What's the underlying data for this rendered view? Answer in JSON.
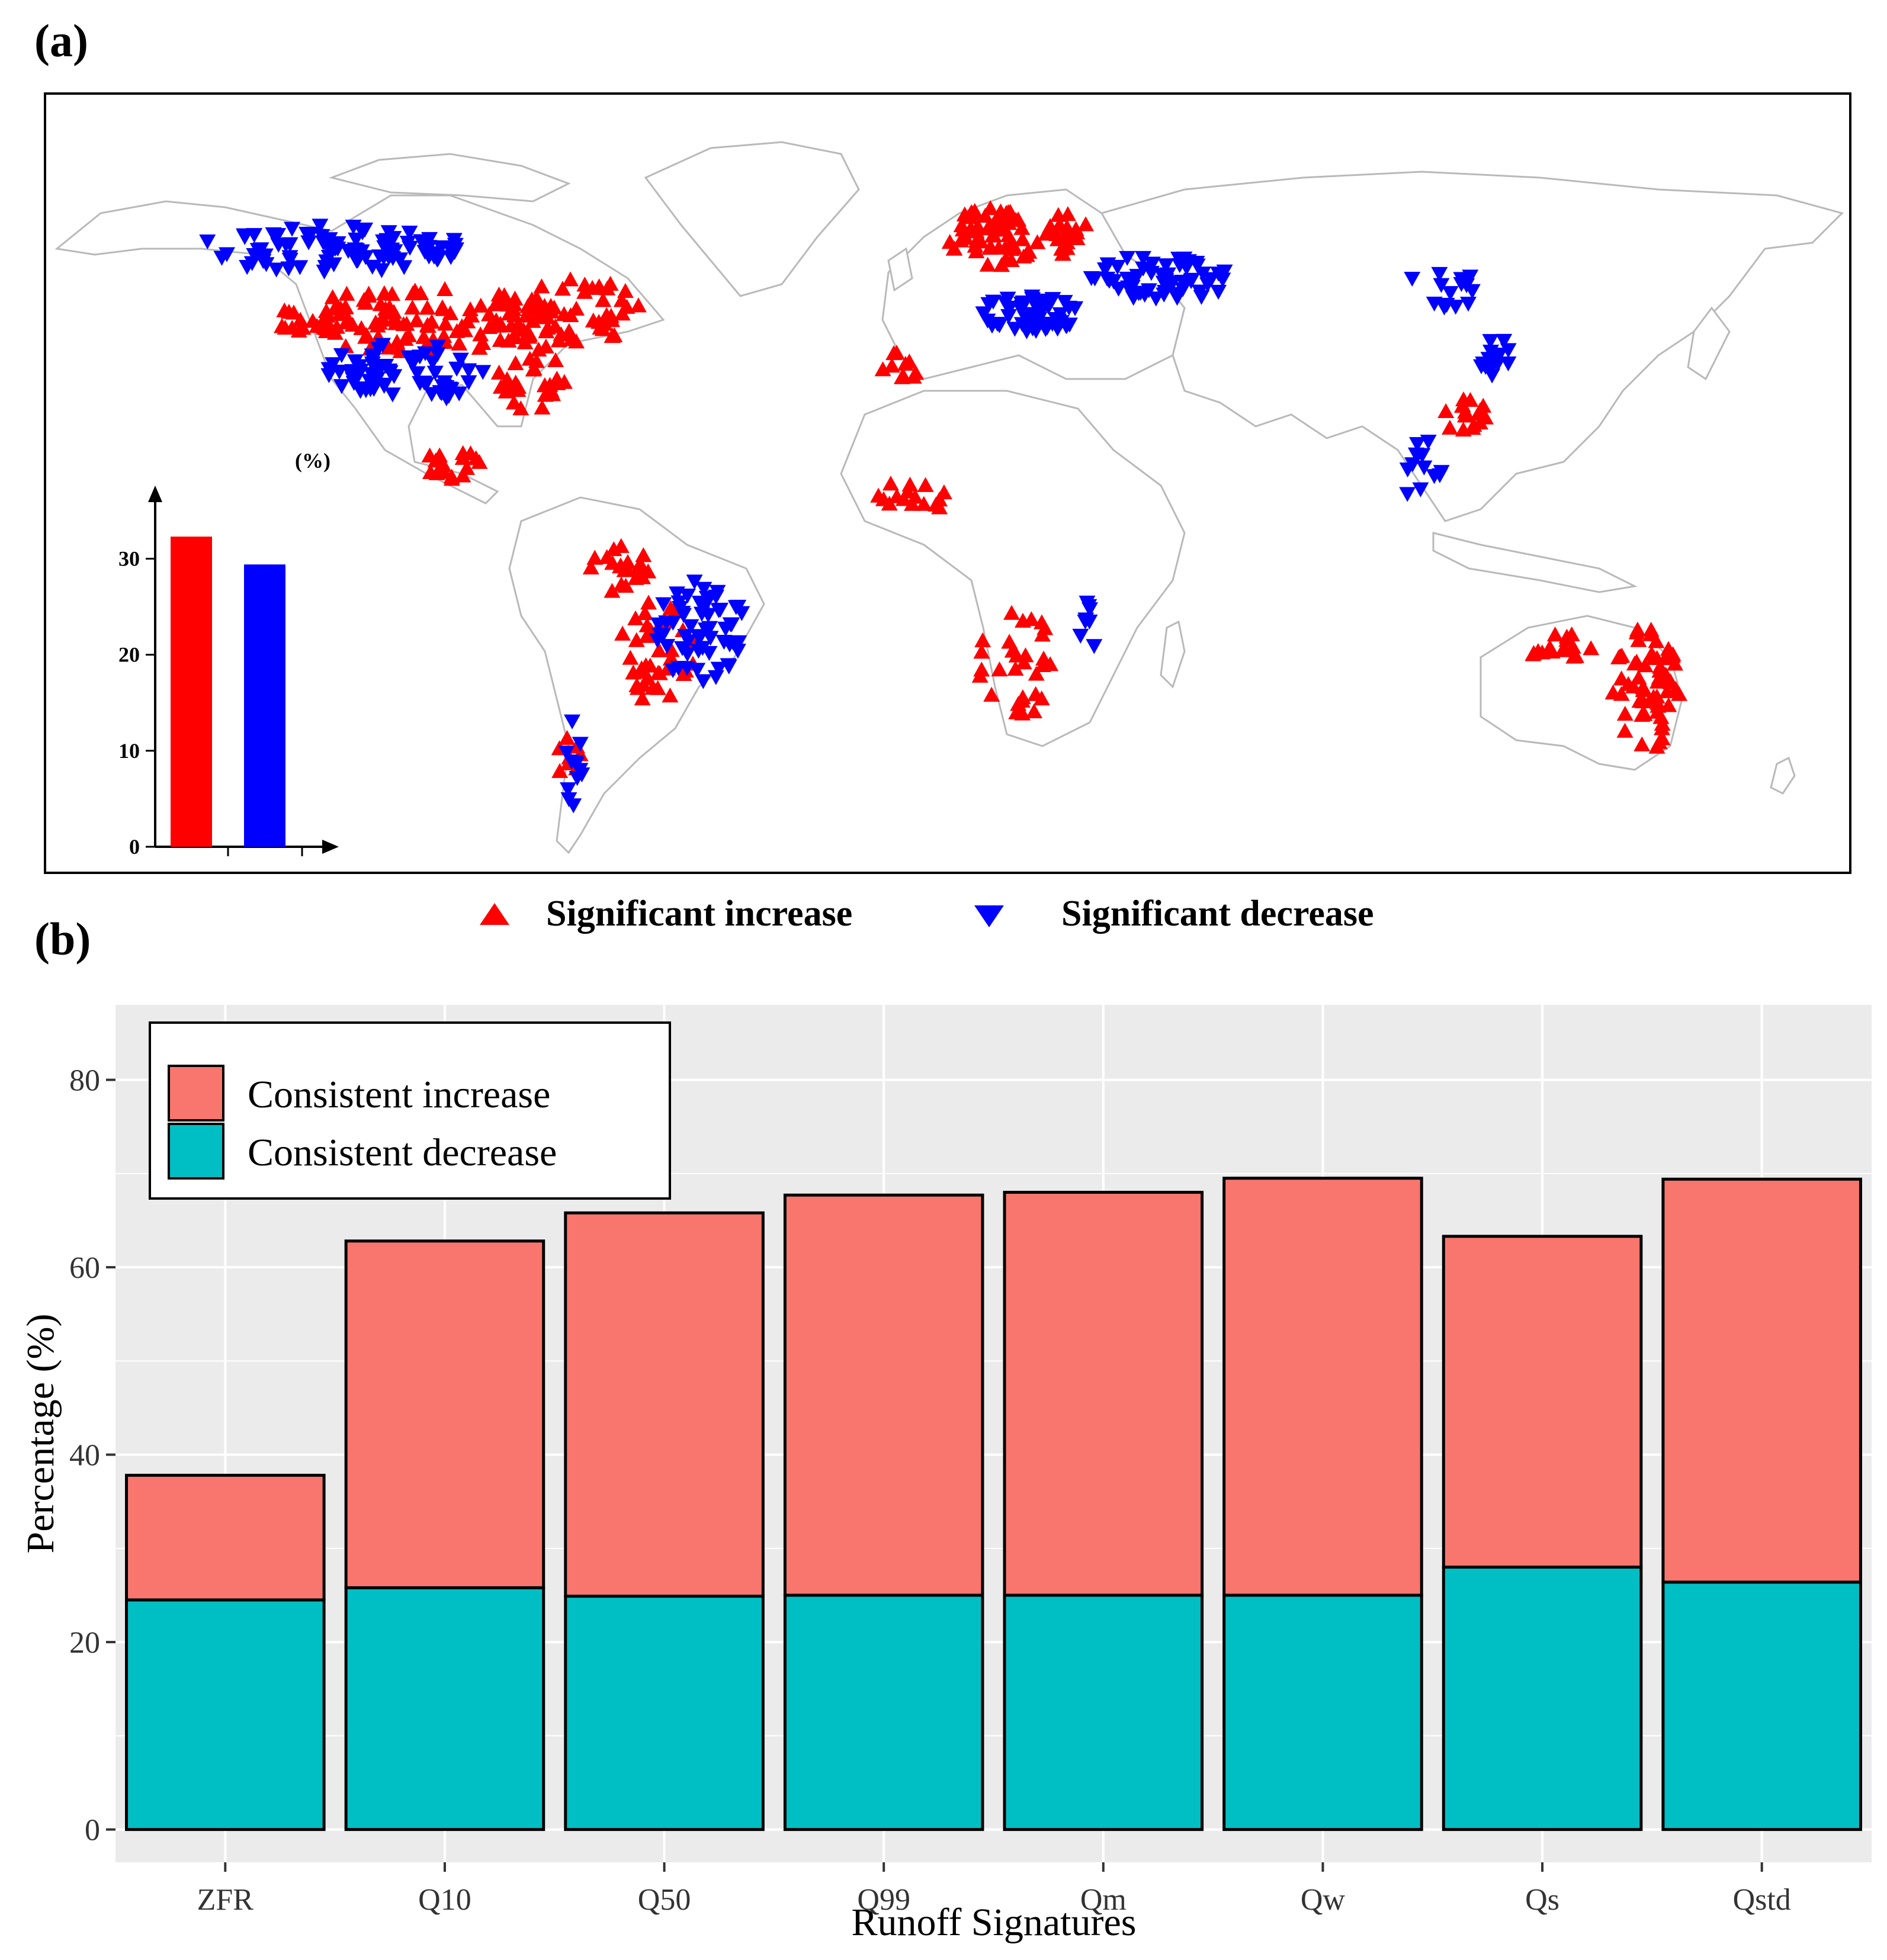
{
  "panel_a": {
    "label": "(a)",
    "legend": {
      "increase_label": "Significant increase",
      "decrease_label": "Significant decrease"
    },
    "inset": {
      "unit_label": "(%)",
      "ticks": [
        "0",
        "10",
        "20",
        "30"
      ]
    }
  },
  "panel_b": {
    "label": "(b)",
    "legend": {
      "increase_label": "Consistent increase",
      "decrease_label": "Consistent decrease"
    }
  },
  "colors": {
    "sig_increase": "#ff0000",
    "sig_decrease": "#0000ff",
    "consistent_increase": "#f8766d",
    "consistent_decrease": "#00bfc4",
    "panel_bg": "#ebebeb"
  },
  "chart_data": [
    {
      "type": "scatter",
      "title": "",
      "description_series": [
        "Significant increase",
        "Significant decrease"
      ],
      "inset_bar": {
        "type": "bar",
        "ylabel": "(%)",
        "yticks": [
          0,
          10,
          20,
          30
        ],
        "ylim": [
          0,
          37
        ],
        "series": [
          {
            "name": "Significant increase",
            "value": 32.3
          },
          {
            "name": "Significant decrease",
            "value": 29.4
          }
        ]
      }
    },
    {
      "type": "bar",
      "stacked": true,
      "title": "",
      "xlabel": "Runoff Signatures",
      "ylabel": "Percentage (%)",
      "ylim": [
        -3.5,
        88
      ],
      "yticks": [
        0,
        20,
        40,
        60,
        80
      ],
      "categories": [
        "ZFR",
        "Q10",
        "Q50",
        "Q99",
        "Qm",
        "Qw",
        "Qs",
        "Qstd"
      ],
      "series": [
        {
          "name": "Consistent decrease",
          "values": [
            24.5,
            25.8,
            24.9,
            25.0,
            25.0,
            25.0,
            28.0,
            26.4
          ]
        },
        {
          "name": "Consistent increase",
          "values": [
            13.3,
            37.0,
            40.9,
            42.7,
            43.0,
            44.5,
            35.3,
            43.0
          ]
        }
      ],
      "legend_position": "top-left"
    }
  ]
}
